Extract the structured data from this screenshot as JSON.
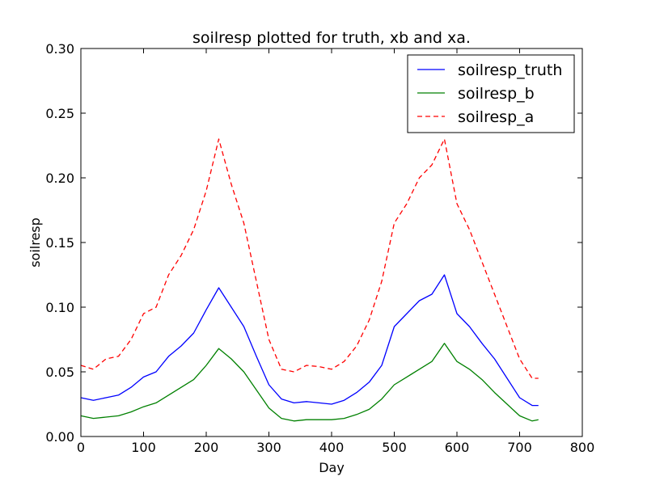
{
  "chart_data": {
    "type": "line",
    "title": "soilresp plotted for truth, xb and xa.",
    "xlabel": "Day",
    "ylabel": "soilresp",
    "xlim": [
      0,
      800
    ],
    "ylim": [
      0,
      0.3
    ],
    "xticks": [
      "0",
      "100",
      "200",
      "300",
      "400",
      "500",
      "600",
      "700",
      "800"
    ],
    "yticks": [
      "0.00",
      "0.05",
      "0.10",
      "0.15",
      "0.20",
      "0.25",
      "0.30"
    ],
    "grid": false,
    "legend_position": "top-right",
    "series": [
      {
        "name": "soilresp_truth",
        "color": "#0000ff",
        "style": "solid",
        "x": [
          0,
          20,
          40,
          60,
          80,
          100,
          120,
          140,
          160,
          180,
          200,
          220,
          240,
          260,
          280,
          300,
          320,
          340,
          360,
          380,
          400,
          420,
          440,
          460,
          480,
          500,
          520,
          540,
          560,
          580,
          600,
          620,
          640,
          660,
          680,
          700,
          720,
          730
        ],
        "y": [
          0.03,
          0.028,
          0.03,
          0.032,
          0.038,
          0.046,
          0.05,
          0.062,
          0.07,
          0.08,
          0.098,
          0.115,
          0.1,
          0.085,
          0.062,
          0.04,
          0.029,
          0.026,
          0.027,
          0.026,
          0.025,
          0.028,
          0.034,
          0.042,
          0.055,
          0.085,
          0.095,
          0.105,
          0.11,
          0.125,
          0.095,
          0.085,
          0.072,
          0.06,
          0.045,
          0.03,
          0.024,
          0.024
        ]
      },
      {
        "name": "soilresp_b",
        "color": "#008000",
        "style": "solid",
        "x": [
          0,
          20,
          40,
          60,
          80,
          100,
          120,
          140,
          160,
          180,
          200,
          220,
          240,
          260,
          280,
          300,
          320,
          340,
          360,
          380,
          400,
          420,
          440,
          460,
          480,
          500,
          520,
          540,
          560,
          580,
          600,
          620,
          640,
          660,
          680,
          700,
          720,
          730
        ],
        "y": [
          0.016,
          0.014,
          0.015,
          0.016,
          0.019,
          0.023,
          0.026,
          0.032,
          0.038,
          0.044,
          0.055,
          0.068,
          0.06,
          0.05,
          0.036,
          0.022,
          0.014,
          0.012,
          0.013,
          0.013,
          0.013,
          0.014,
          0.017,
          0.021,
          0.029,
          0.04,
          0.046,
          0.052,
          0.058,
          0.072,
          0.058,
          0.052,
          0.044,
          0.034,
          0.025,
          0.016,
          0.012,
          0.013
        ]
      },
      {
        "name": "soilresp_a",
        "color": "#ff0000",
        "style": "dashed",
        "x": [
          0,
          20,
          40,
          60,
          80,
          100,
          120,
          140,
          160,
          180,
          200,
          220,
          240,
          260,
          280,
          300,
          320,
          340,
          360,
          380,
          400,
          420,
          440,
          460,
          480,
          500,
          520,
          540,
          560,
          580,
          600,
          620,
          640,
          660,
          680,
          700,
          720,
          730
        ],
        "y": [
          0.055,
          0.052,
          0.06,
          0.062,
          0.075,
          0.095,
          0.1,
          0.125,
          0.14,
          0.16,
          0.19,
          0.23,
          0.195,
          0.165,
          0.12,
          0.075,
          0.052,
          0.05,
          0.055,
          0.054,
          0.052,
          0.058,
          0.07,
          0.09,
          0.12,
          0.165,
          0.18,
          0.2,
          0.21,
          0.23,
          0.18,
          0.16,
          0.135,
          0.11,
          0.085,
          0.06,
          0.045,
          0.045
        ]
      }
    ]
  }
}
